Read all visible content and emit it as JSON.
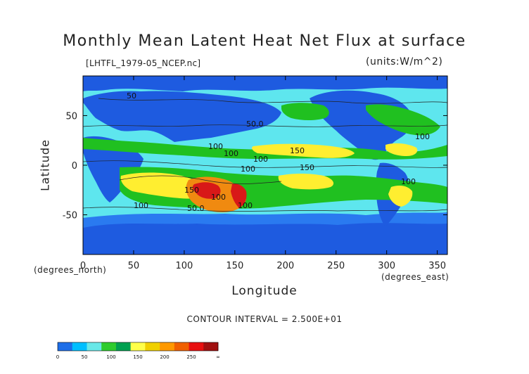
{
  "title": "Monthly Mean Latent Heat Net Flux at surface",
  "file_label": "[LHTFL_1979-05_NCEP.nc]",
  "units_label": "(units:W/m^2)",
  "xlabel": "Longitude",
  "ylabel": "Latitude",
  "x_unit_label": "(degrees_east)",
  "y_unit_label": "(degrees_north)",
  "contour_interval_text": "CONTOUR INTERVAL = 2.500E+01",
  "map": {
    "x_range": [
      0,
      360
    ],
    "y_range": [
      -90,
      90
    ],
    "x_ticks": [
      "0",
      "50",
      "100",
      "150",
      "200",
      "250",
      "300",
      "350"
    ],
    "y_ticks": [
      "50",
      "0",
      "-50"
    ],
    "contour_labels": [
      "50",
      "50.0",
      "100",
      "150",
      "100",
      "150",
      "100",
      "100",
      "100",
      "50.0",
      "100",
      "150",
      "100",
      "100",
      "100"
    ]
  },
  "colorbar": {
    "levels": [
      "0",
      "50",
      "100",
      "150",
      "200",
      "250",
      "∞"
    ],
    "colors": [
      "#1e6ee8",
      "#00bfff",
      "#69e8e8",
      "#2ecc2e",
      "#00a050",
      "#ffff4a",
      "#f0d000",
      "#ff9900",
      "#f06000",
      "#e81010",
      "#a01010"
    ]
  },
  "palette": {
    "land_low": "#1e5be0",
    "ocean_cyan": "#5ee6ee",
    "green": "#20c020",
    "yellow": "#ffee30",
    "orange": "#f08a10",
    "red": "#d81818"
  }
}
